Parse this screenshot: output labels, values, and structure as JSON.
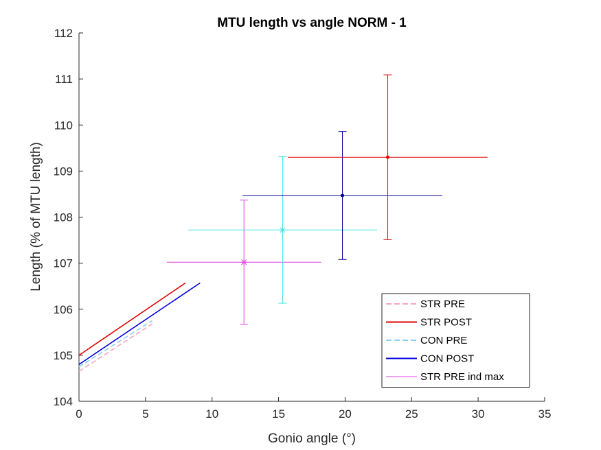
{
  "chart_data": {
    "type": "line",
    "title": "MTU length vs angle NORM - 1",
    "xlabel": "Gonio angle (°)",
    "ylabel": "Length (% of MTU length)",
    "xlim": [
      0,
      35
    ],
    "ylim": [
      104,
      112
    ],
    "xticks": [
      0,
      5,
      10,
      15,
      20,
      25,
      30,
      35
    ],
    "yticks": [
      104,
      105,
      106,
      107,
      108,
      109,
      110,
      111,
      112
    ],
    "grid": false,
    "legend_position": "bottom-right",
    "series": [
      {
        "name": "STR PRE",
        "kind": "line",
        "color": "#f7a1c4",
        "dash": true,
        "x": [
          0,
          5.5
        ],
        "y": [
          104.65,
          105.68
        ]
      },
      {
        "name": "STR POST",
        "kind": "line",
        "color": "#e00000",
        "dash": false,
        "x": [
          0,
          8
        ],
        "y": [
          105.0,
          106.57
        ]
      },
      {
        "name": "CON PRE",
        "kind": "line",
        "color": "#87cef5",
        "dash": true,
        "x": [
          0,
          5.5
        ],
        "y": [
          104.75,
          105.75
        ]
      },
      {
        "name": "CON POST",
        "kind": "line",
        "color": "#0000e0",
        "dash": false,
        "x": [
          0,
          9.1
        ],
        "y": [
          104.8,
          106.57
        ]
      },
      {
        "name": "STR PRE ind max",
        "kind": "errorbar",
        "color": "#e040e0",
        "marker": "asterisk",
        "x": 12.4,
        "y": 107.02,
        "xneg": 5.8,
        "xpos": 5.8,
        "yneg": 1.35,
        "ypos": 1.35
      }
    ],
    "unlabeled_points": [
      {
        "color": "#40e0e0",
        "marker": "asterisk",
        "x": 15.3,
        "y": 107.72,
        "xneg": 7.1,
        "xpos": 7.1,
        "yneg": 1.59,
        "ypos": 1.59
      },
      {
        "color": "#00009a",
        "marker": "dot",
        "x": 19.8,
        "y": 108.47,
        "xneg": 7.5,
        "xpos": 7.5,
        "yneg": 1.39,
        "ypos": 1.39
      },
      {
        "color": "#e00000",
        "marker": "dot",
        "x": 23.2,
        "y": 109.3,
        "xneg": 7.5,
        "xpos": 7.5,
        "yneg": 1.79,
        "ypos": 1.79
      }
    ]
  }
}
